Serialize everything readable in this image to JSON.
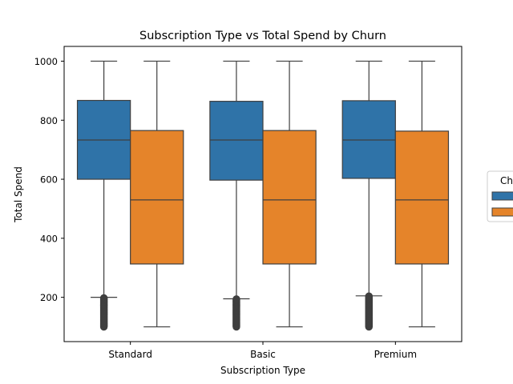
{
  "chart_data": {
    "type": "box",
    "title": "Subscription Type vs Total Spend by Churn",
    "xlabel": "Subscription Type",
    "ylabel": "Total Spend",
    "ylim": [
      50,
      1050
    ],
    "yticks": [
      200,
      400,
      600,
      800,
      1000
    ],
    "categories": [
      "Standard",
      "Basic",
      "Premium"
    ],
    "legend": {
      "title": "Ch",
      "placement": "right",
      "entries": [
        {
          "color": "#2f73a8"
        },
        {
          "color": "#e5842a"
        }
      ]
    },
    "series": [
      {
        "color": "#2f73a8",
        "boxes": [
          {
            "whisker_low": 200,
            "q1": 600,
            "median": 733,
            "q3": 867,
            "whisker_high": 1000,
            "outlier_range": [
              100,
              199
            ]
          },
          {
            "whisker_low": 195,
            "q1": 597,
            "median": 733,
            "q3": 864,
            "whisker_high": 1000,
            "outlier_range": [
              100,
              194
            ]
          },
          {
            "whisker_low": 205,
            "q1": 603,
            "median": 733,
            "q3": 866,
            "whisker_high": 1000,
            "outlier_range": [
              100,
              204
            ]
          }
        ]
      },
      {
        "color": "#e5842a",
        "boxes": [
          {
            "whisker_low": 100,
            "q1": 313,
            "median": 530,
            "q3": 765,
            "whisker_high": 1000,
            "outlier_range": null
          },
          {
            "whisker_low": 100,
            "q1": 313,
            "median": 530,
            "q3": 765,
            "whisker_high": 1000,
            "outlier_range": null
          },
          {
            "whisker_low": 100,
            "q1": 313,
            "median": 530,
            "q3": 763,
            "whisker_high": 1000,
            "outlier_range": null
          }
        ]
      }
    ]
  }
}
